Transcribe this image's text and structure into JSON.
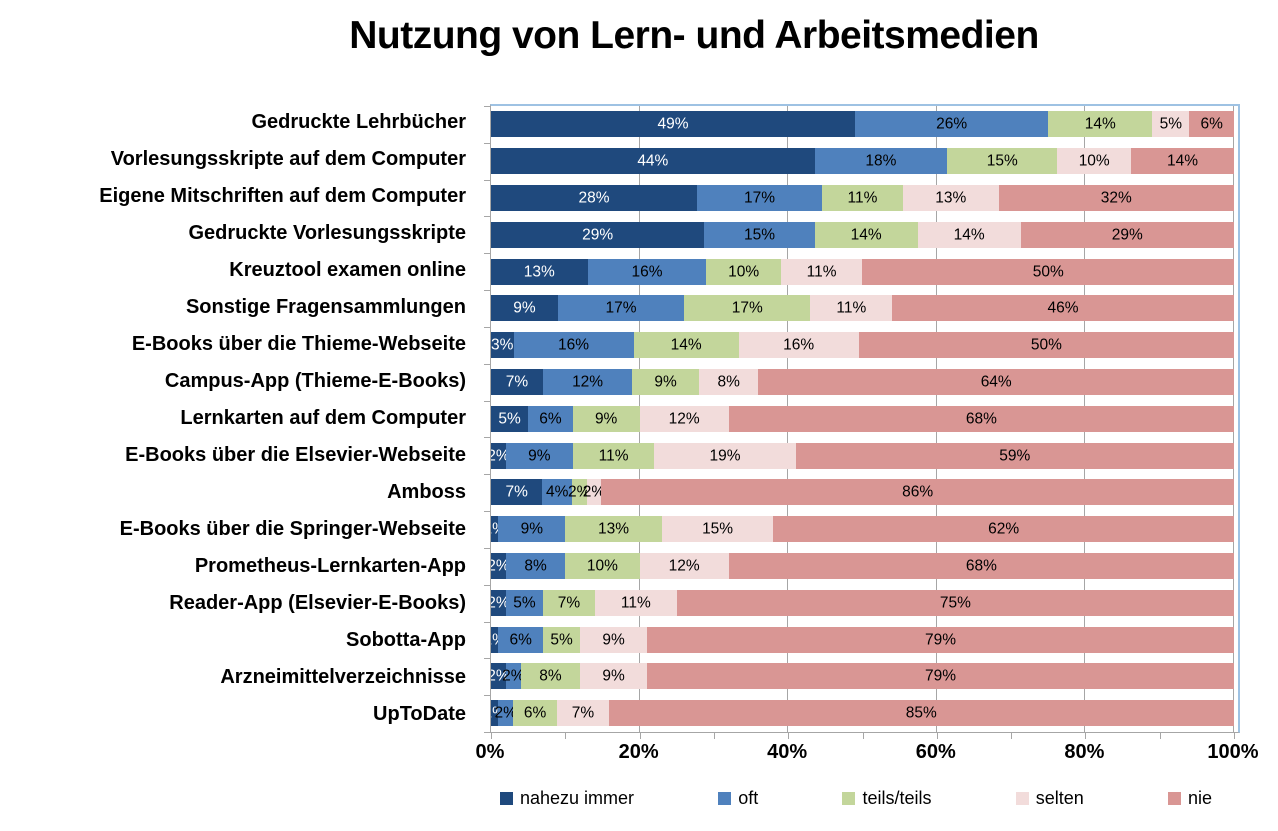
{
  "title": "Nutzung von Lern- und Arbeitsmedien",
  "colors": {
    "background": "#FFFFFF",
    "title_color": "#000000",
    "gridline": "#A6A6A6",
    "axis": "#A6A6A6",
    "plot_border": "#9EC2E3",
    "label_on_dark": "#FFFFFF",
    "label_on_light": "#000000"
  },
  "x_axis": {
    "min": 0,
    "max": 100,
    "tick_labels": [
      "0%",
      "20%",
      "40%",
      "60%",
      "80%",
      "100%"
    ],
    "tick_label_positions_pct": [
      0,
      20,
      40,
      60,
      80,
      100
    ],
    "minor_tick_positions_pct": [
      0,
      10,
      20,
      30,
      40,
      50,
      60,
      70,
      80,
      90,
      100
    ],
    "gridline_positions_pct": [
      20,
      40,
      60,
      80,
      100
    ]
  },
  "chart_data": {
    "type": "bar",
    "stacked": true,
    "percent_stacked": true,
    "orientation": "horizontal",
    "title": "Nutzung von Lern- und Arbeitsmedien",
    "xlabel": "",
    "ylabel": "",
    "xlim": [
      0,
      100
    ],
    "grid": "vertical gridlines every 20%",
    "legend_position": "bottom",
    "value_suffix": "%",
    "categories": [
      "Gedruckte Lehrbücher",
      "Vorlesungsskripte auf dem Computer",
      "Eigene Mitschriften auf dem Computer",
      "Gedruckte Vorlesungsskripte",
      "Kreuztool examen online",
      "Sonstige Fragensammlungen",
      "E-Books über die Thieme-Webseite",
      "Campus-App (Thieme-E-Books)",
      "Lernkarten auf dem Computer",
      "E-Books über die Elsevier-Webseite",
      "Amboss",
      "E-Books über die Springer-Webseite",
      "Prometheus-Lernkarten-App",
      "Reader-App (Elsevier-E-Books)",
      "Sobotta-App",
      "Arzneimittelverzeichnisse",
      "UpToDate"
    ],
    "series": [
      {
        "name": "nahezu immer",
        "color": "#1F497D",
        "label_color": "#FFFFFF",
        "values": [
          49,
          44,
          28,
          29,
          13,
          9,
          3,
          7,
          5,
          2,
          7,
          1,
          2,
          2,
          1,
          2,
          1
        ]
      },
      {
        "name": "oft",
        "color": "#4F81BD",
        "label_color": "#000000",
        "values": [
          26,
          18,
          17,
          15,
          16,
          17,
          16,
          12,
          6,
          9,
          4,
          9,
          8,
          5,
          6,
          2,
          2
        ]
      },
      {
        "name": "teils/teils",
        "color": "#C3D69B",
        "label_color": "#000000",
        "values": [
          14,
          15,
          11,
          14,
          10,
          17,
          14,
          9,
          9,
          11,
          2,
          13,
          10,
          7,
          5,
          8,
          6
        ]
      },
      {
        "name": "selten",
        "color": "#F2DCDB",
        "label_color": "#000000",
        "values": [
          5,
          10,
          13,
          14,
          11,
          11,
          16,
          8,
          12,
          19,
          2,
          15,
          12,
          11,
          9,
          9,
          7
        ]
      },
      {
        "name": "nie",
        "color": "#D99694",
        "label_color": "#000000",
        "values": [
          6,
          14,
          32,
          29,
          50,
          46,
          50,
          64,
          68,
          59,
          86,
          62,
          68,
          75,
          79,
          79,
          85
        ]
      }
    ]
  }
}
